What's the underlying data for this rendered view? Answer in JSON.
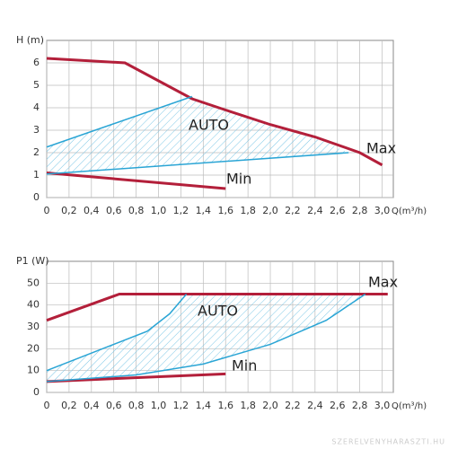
{
  "chart_data": [
    {
      "type": "line",
      "ylabel": "H (m)",
      "xlabel": "Q(m³/h)",
      "xlim": [
        0,
        3.1
      ],
      "ylim": [
        0,
        7
      ],
      "xticks": [
        0,
        {
          "value": 0.2,
          "label": "0,2"
        },
        {
          "value": 0.4,
          "label": "0,4"
        },
        {
          "value": 0.6,
          "label": "0,6"
        },
        {
          "value": 0.8,
          "label": "0,8"
        },
        {
          "value": 1.0,
          "label": "1,0"
        },
        {
          "value": 1.2,
          "label": "1,2"
        },
        {
          "value": 1.4,
          "label": "1,4"
        },
        {
          "value": 1.6,
          "label": "1,6"
        },
        {
          "value": 1.8,
          "label": "1,8"
        },
        {
          "value": 2.0,
          "label": "2,0"
        },
        {
          "value": 2.2,
          "label": "2,2"
        },
        {
          "value": 2.4,
          "label": "2,4"
        },
        {
          "value": 2.6,
          "label": "2,6"
        },
        {
          "value": 2.8,
          "label": "2,8"
        },
        {
          "value": 3.0,
          "label": "3,0"
        }
      ],
      "yticks": [
        0,
        1,
        2,
        3,
        4,
        5,
        6
      ],
      "grid": true,
      "series": [
        {
          "color": "#b31f3a",
          "x": [
            0,
            0.7,
            1.0,
            1.3,
            1.6,
            2.0,
            2.4,
            2.8,
            3.0
          ],
          "values": [
            6.2,
            6.0,
            5.2,
            4.4,
            3.9,
            3.25,
            2.7,
            2.0,
            1.45
          ]
        },
        {
          "color": "#b31f3a",
          "x": [
            0,
            1.6
          ],
          "values": [
            1.1,
            0.4
          ]
        },
        {
          "color": "#2aa5d5",
          "x": [
            0,
            1.3
          ],
          "values": [
            2.25,
            4.5
          ]
        },
        {
          "color": "#2aa5d5",
          "x": [
            0,
            2.7
          ],
          "values": [
            1.05,
            2.0
          ]
        }
      ],
      "annotations": [
        "AUTO",
        "Max",
        "Min"
      ]
    },
    {
      "type": "line",
      "ylabel": "P1 (W)",
      "xlabel": "Q(m³/h)",
      "xlim": [
        0,
        3.1
      ],
      "ylim": [
        0,
        60
      ],
      "xticks": [
        0,
        {
          "value": 0.2,
          "label": "0,2"
        },
        {
          "value": 0.4,
          "label": "0,4"
        },
        {
          "value": 0.6,
          "label": "0,6"
        },
        {
          "value": 0.8,
          "label": "0,8"
        },
        {
          "value": 1.0,
          "label": "1,0"
        },
        {
          "value": 1.2,
          "label": "1,2"
        },
        {
          "value": 1.4,
          "label": "1,4"
        },
        {
          "value": 1.6,
          "label": "1,6"
        },
        {
          "value": 1.8,
          "label": "1,8"
        },
        {
          "value": 2.0,
          "label": "2,0"
        },
        {
          "value": 2.2,
          "label": "2,2"
        },
        {
          "value": 2.4,
          "label": "2,4"
        },
        {
          "value": 2.6,
          "label": "2,6"
        },
        {
          "value": 2.8,
          "label": "2,8"
        },
        {
          "value": 3.0,
          "label": "3,0"
        }
      ],
      "yticks": [
        0,
        10,
        20,
        30,
        40,
        50
      ],
      "grid": true,
      "series": [
        {
          "color": "#b31f3a",
          "x": [
            0,
            0.65,
            3.05
          ],
          "values": [
            33,
            45,
            45
          ]
        },
        {
          "color": "#b31f3a",
          "x": [
            0,
            1.6
          ],
          "values": [
            5,
            8.5
          ]
        },
        {
          "color": "#2aa5d5",
          "x": [
            0,
            0.5,
            0.9,
            1.1,
            1.25
          ],
          "values": [
            10,
            20,
            28,
            36,
            45
          ]
        },
        {
          "color": "#2aa5d5",
          "x": [
            0,
            0.8,
            1.4,
            2.0,
            2.5,
            2.85
          ],
          "values": [
            5,
            8,
            13,
            22,
            33,
            45
          ]
        }
      ],
      "annotations": [
        "AUTO",
        "Max",
        "Min"
      ]
    }
  ],
  "watermark": "SZERELVENYHARASZTI.HU"
}
